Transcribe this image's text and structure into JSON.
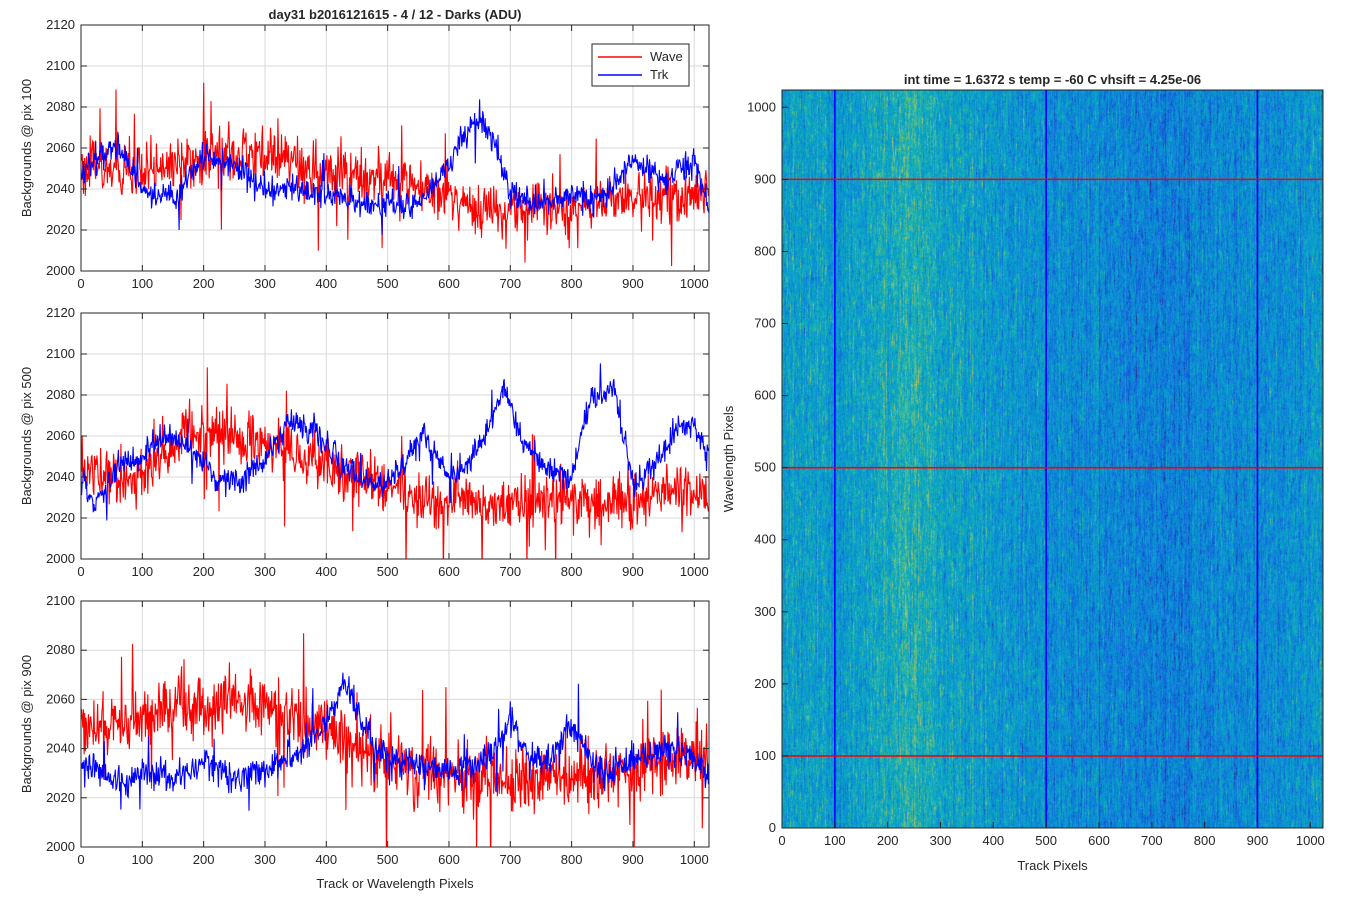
{
  "chart_data": [
    {
      "type": "line",
      "panel": "top-left",
      "title": "day31 b2016121615 - 4 / 12 - Darks (ADU)",
      "xlabel": "",
      "ylabel": "Backgrounds @ pix 100",
      "xlim": [
        0,
        1024
      ],
      "ylim": [
        2000,
        2120
      ],
      "xticks": [
        0,
        100,
        200,
        300,
        400,
        500,
        600,
        700,
        800,
        900,
        1000
      ],
      "yticks": [
        2000,
        2020,
        2040,
        2060,
        2080,
        2100,
        2120
      ],
      "grid": true,
      "legend": "top-right",
      "series": [
        {
          "name": "Wave",
          "color": "#ff0000",
          "x": [
            0,
            50,
            100,
            150,
            200,
            250,
            300,
            350,
            400,
            450,
            500,
            550,
            600,
            650,
            700,
            750,
            800,
            850,
            900,
            950,
            1024
          ],
          "values": [
            2052,
            2048,
            2046,
            2052,
            2056,
            2058,
            2057,
            2052,
            2048,
            2047,
            2044,
            2043,
            2036,
            2030,
            2030,
            2032,
            2030,
            2034,
            2036,
            2035,
            2040
          ],
          "noise": 12
        },
        {
          "name": "Trk",
          "color": "#0000ff",
          "x": [
            0,
            30,
            60,
            100,
            150,
            200,
            250,
            300,
            350,
            400,
            450,
            500,
            550,
            600,
            620,
            650,
            680,
            700,
            750,
            800,
            850,
            900,
            950,
            1000,
            1024
          ],
          "values": [
            2048,
            2057,
            2062,
            2038,
            2036,
            2056,
            2052,
            2040,
            2040,
            2036,
            2034,
            2033,
            2032,
            2052,
            2065,
            2074,
            2058,
            2038,
            2033,
            2037,
            2035,
            2054,
            2045,
            2053,
            2030
          ],
          "noise": 6
        }
      ]
    },
    {
      "type": "line",
      "panel": "middle-left",
      "title": "",
      "xlabel": "",
      "ylabel": "Backgrounds @ pix 500",
      "xlim": [
        0,
        1024
      ],
      "ylim": [
        2000,
        2120
      ],
      "xticks": [
        0,
        100,
        200,
        300,
        400,
        500,
        600,
        700,
        800,
        900,
        1000
      ],
      "yticks": [
        2000,
        2020,
        2040,
        2060,
        2080,
        2100,
        2120
      ],
      "grid": true,
      "series": [
        {
          "name": "Wave",
          "color": "#ff0000",
          "x": [
            0,
            50,
            100,
            150,
            200,
            250,
            300,
            350,
            400,
            450,
            500,
            550,
            600,
            650,
            700,
            750,
            800,
            850,
            900,
            950,
            1024
          ],
          "values": [
            2045,
            2040,
            2040,
            2058,
            2062,
            2060,
            2055,
            2050,
            2046,
            2040,
            2035,
            2030,
            2028,
            2027,
            2026,
            2027,
            2030,
            2028,
            2030,
            2034,
            2030
          ],
          "noise": 12
        },
        {
          "name": "Trk",
          "color": "#0000ff",
          "x": [
            0,
            20,
            60,
            100,
            140,
            180,
            220,
            260,
            300,
            340,
            380,
            420,
            450,
            500,
            560,
            600,
            620,
            660,
            690,
            720,
            760,
            800,
            830,
            870,
            900,
            940,
            980,
            1000,
            1024
          ],
          "values": [
            2042,
            2025,
            2045,
            2050,
            2060,
            2055,
            2040,
            2036,
            2050,
            2068,
            2062,
            2048,
            2040,
            2036,
            2060,
            2040,
            2042,
            2060,
            2084,
            2058,
            2044,
            2040,
            2078,
            2083,
            2036,
            2048,
            2066,
            2064,
            2050
          ],
          "noise": 6
        }
      ]
    },
    {
      "type": "line",
      "panel": "bottom-left",
      "title": "",
      "xlabel": "Track or Wavelength Pixels",
      "ylabel": "Backgrounds @ pix 900",
      "xlim": [
        0,
        1024
      ],
      "ylim": [
        2000,
        2100
      ],
      "xticks": [
        0,
        100,
        200,
        300,
        400,
        500,
        600,
        700,
        800,
        900,
        1000
      ],
      "yticks": [
        2000,
        2020,
        2040,
        2060,
        2080,
        2100
      ],
      "grid": true,
      "series": [
        {
          "name": "Wave",
          "color": "#ff0000",
          "x": [
            0,
            50,
            100,
            150,
            200,
            250,
            300,
            350,
            400,
            450,
            500,
            550,
            600,
            650,
            700,
            750,
            800,
            850,
            900,
            950,
            1024
          ],
          "values": [
            2050,
            2048,
            2052,
            2056,
            2058,
            2060,
            2058,
            2052,
            2048,
            2040,
            2034,
            2032,
            2030,
            2028,
            2027,
            2028,
            2028,
            2030,
            2032,
            2035,
            2036
          ],
          "noise": 12
        },
        {
          "name": "Trk",
          "color": "#0000ff",
          "x": [
            0,
            30,
            70,
            100,
            150,
            200,
            250,
            300,
            350,
            400,
            430,
            460,
            500,
            550,
            600,
            640,
            680,
            700,
            730,
            760,
            800,
            820,
            850,
            900,
            950,
            1000,
            1024
          ],
          "values": [
            2034,
            2030,
            2026,
            2030,
            2028,
            2035,
            2028,
            2032,
            2038,
            2050,
            2068,
            2048,
            2036,
            2034,
            2030,
            2034,
            2040,
            2052,
            2036,
            2034,
            2050,
            2040,
            2030,
            2036,
            2040,
            2036,
            2030
          ],
          "noise": 6
        }
      ]
    },
    {
      "type": "heatmap",
      "panel": "right",
      "title": "int time = 1.6372 s    temp = -60 C    vhsift = 4.25e-06",
      "xlabel": "Track Pixels",
      "ylabel": "Wavelength Pixels",
      "xlim": [
        0,
        1024
      ],
      "ylim": [
        0,
        1024
      ],
      "xticks": [
        0,
        100,
        200,
        300,
        400,
        500,
        600,
        700,
        800,
        900,
        1000
      ],
      "yticks": [
        0,
        100,
        200,
        300,
        400,
        500,
        600,
        700,
        800,
        900,
        1000
      ],
      "grid": false,
      "colormap": "parula",
      "column_profile": {
        "x": [
          0,
          50,
          100,
          150,
          200,
          230,
          260,
          300,
          350,
          400,
          450,
          500,
          550,
          600,
          650,
          700,
          750,
          800,
          850,
          900,
          950,
          1000,
          1024
        ],
        "level": [
          0.5,
          0.48,
          0.44,
          0.48,
          0.55,
          0.6,
          0.57,
          0.52,
          0.48,
          0.46,
          0.43,
          0.4,
          0.38,
          0.37,
          0.35,
          0.33,
          0.32,
          0.34,
          0.36,
          0.38,
          0.4,
          0.42,
          0.44
        ]
      },
      "overlays": [
        {
          "orientation": "vertical",
          "value": 100,
          "color": "#0000ff"
        },
        {
          "orientation": "vertical",
          "value": 500,
          "color": "#0000ff"
        },
        {
          "orientation": "vertical",
          "value": 900,
          "color": "#0000ff"
        },
        {
          "orientation": "horizontal",
          "value": 100,
          "color": "#ff0000"
        },
        {
          "orientation": "horizontal",
          "value": 500,
          "color": "#ff0000"
        },
        {
          "orientation": "horizontal",
          "value": 900,
          "color": "#ff0000"
        }
      ]
    }
  ]
}
